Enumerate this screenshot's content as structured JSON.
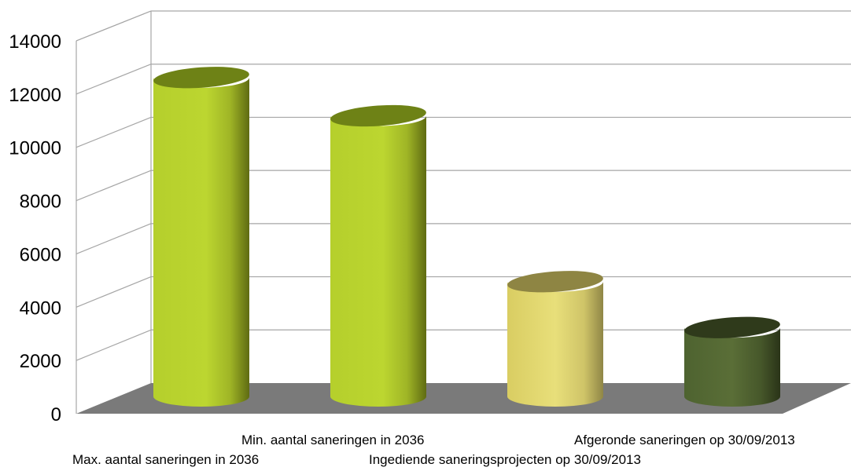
{
  "chart_data": {
    "type": "bar",
    "style": "3d-cylinder",
    "title": "",
    "xlabel": "",
    "ylabel": "",
    "ylim": [
      0,
      14000
    ],
    "y_ticks": [
      "0",
      "2000",
      "4000",
      "6000",
      "8000",
      "10000",
      "12000",
      "14000"
    ],
    "grid": true,
    "legend": "none",
    "categories": [
      "Max. aantal saneringen in 2036",
      "Min. aantal saneringen in 2036",
      "Ingediende saneringsprojecten op 30/09/2013",
      "Afgeronde saneringen op 30/09/2013"
    ],
    "values": [
      12500,
      11000,
      4500,
      2700
    ],
    "bar_colors": [
      "#b8d22e",
      "#b8d22e",
      "#e6dc78",
      "#556b2f"
    ],
    "floor_color": "#7a7a7a"
  }
}
